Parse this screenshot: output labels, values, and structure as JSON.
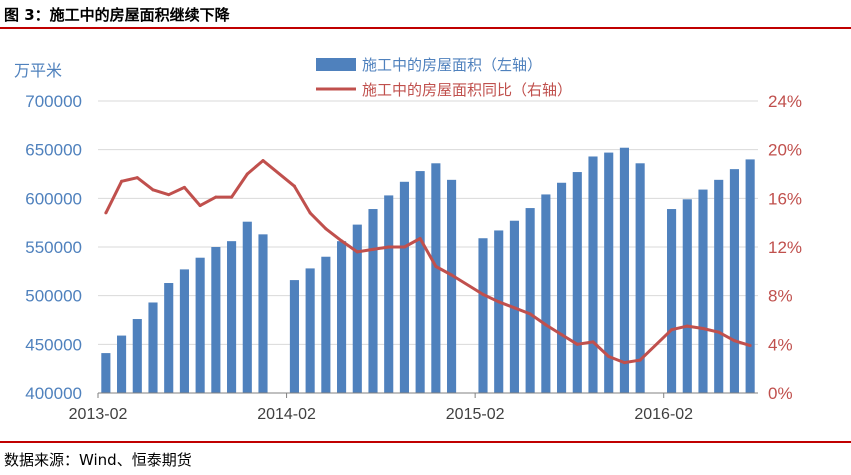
{
  "figure_title": "图 3：施工中的房屋面积继续下降",
  "source": "数据来源：Wind、恒泰期货",
  "chart_data": {
    "type": "bar+line",
    "left_axis": {
      "unit_label": "万平米",
      "range": [
        400000,
        700000
      ],
      "ticks": [
        "700000",
        "650000",
        "600000",
        "550000",
        "500000",
        "450000",
        "400000"
      ]
    },
    "right_axis": {
      "range": [
        0,
        24
      ],
      "ticks": [
        "24%",
        "20%",
        "16%",
        "12%",
        "8%",
        "4%",
        "0%"
      ]
    },
    "x_tick_labels": [
      "2013-02",
      "2014-02",
      "2015-02",
      "2016-02"
    ],
    "x_tick_positions": [
      0,
      11,
      22,
      33
    ],
    "legend": [
      {
        "name": "施工中的房屋面积（左轴）",
        "color": "#4f81bd",
        "kind": "bar"
      },
      {
        "name": "施工中的房屋面积同比（右轴）",
        "color": "#c0504d",
        "kind": "line"
      }
    ],
    "categories": [
      "2013-02",
      "2013-03",
      "2013-04",
      "2013-05",
      "2013-06",
      "2013-07",
      "2013-08",
      "2013-09",
      "2013-10",
      "2013-11",
      "2013-12",
      "2014-02",
      "2014-03",
      "2014-04",
      "2014-05",
      "2014-06",
      "2014-07",
      "2014-08",
      "2014-09",
      "2014-10",
      "2014-11",
      "2014-12",
      "2015-02",
      "2015-03",
      "2015-04",
      "2015-05",
      "2015-06",
      "2015-07",
      "2015-08",
      "2015-09",
      "2015-10",
      "2015-11",
      "2015-12",
      "2016-02",
      "2016-03",
      "2016-04",
      "2016-05",
      "2016-06",
      "2016-07"
    ],
    "series": [
      {
        "name": "施工中的房屋面积（左轴）",
        "axis": "left",
        "type": "bar",
        "values": [
          441000,
          459000,
          476000,
          493000,
          513000,
          527000,
          539000,
          550000,
          556000,
          576000,
          563000,
          516000,
          528000,
          540000,
          556000,
          573000,
          589000,
          603000,
          617000,
          628000,
          636000,
          619000,
          559000,
          567000,
          577000,
          590000,
          604000,
          616000,
          627000,
          643000,
          647000,
          652000,
          636000,
          589000,
          599000,
          609000,
          619000,
          630000,
          640000
        ]
      },
      {
        "name": "施工中的房屋面积同比（右轴）",
        "axis": "right",
        "type": "line",
        "values": [
          14.8,
          17.4,
          17.7,
          16.7,
          16.3,
          16.9,
          15.4,
          16.1,
          16.1,
          18.0,
          19.1,
          17.0,
          14.8,
          13.5,
          12.5,
          11.6,
          11.8,
          12.0,
          12.0,
          12.7,
          10.4,
          9.7,
          8.1,
          7.5,
          7.0,
          6.5,
          5.6,
          4.8,
          4.0,
          4.2,
          3.0,
          2.5,
          2.7,
          5.2,
          5.5,
          5.3,
          5.0,
          4.3,
          3.9
        ]
      }
    ]
  }
}
